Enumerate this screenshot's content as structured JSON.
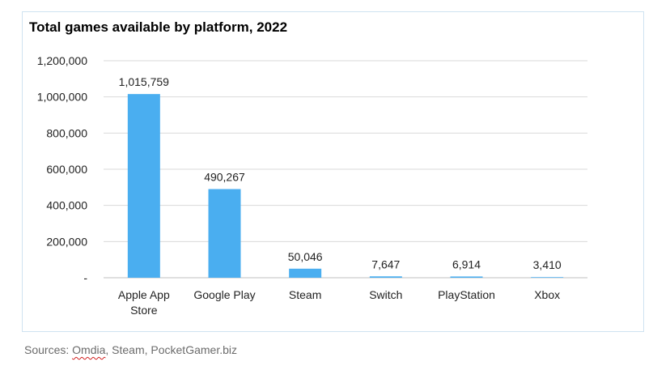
{
  "chart_data": {
    "type": "bar",
    "title": "Total games available by platform, 2022",
    "categories": [
      [
        "Apple App",
        "Store"
      ],
      [
        "Google Play"
      ],
      [
        "Steam"
      ],
      [
        "Switch"
      ],
      [
        "PlayStation"
      ],
      [
        "Xbox"
      ]
    ],
    "values": [
      1015759,
      490267,
      50046,
      7647,
      6914,
      3410
    ],
    "value_labels": [
      "1,015,759",
      "490,267",
      "50,046",
      "7,647",
      "6,914",
      "3,410"
    ],
    "ylim": [
      0,
      1200000
    ],
    "yticks": [
      0,
      200000,
      400000,
      600000,
      800000,
      1000000,
      1200000
    ],
    "ytick_labels": [
      "-",
      "200,000",
      "400,000",
      "600,000",
      "800,000",
      "1,000,000",
      "1,200,000"
    ],
    "xlabel": "",
    "ylabel": "",
    "bar_color": "#4aaef0",
    "grid": true
  },
  "source": {
    "prefix": "Sources: ",
    "flagged_word": "Omdia",
    "rest": ", Steam, PocketGamer.biz"
  }
}
